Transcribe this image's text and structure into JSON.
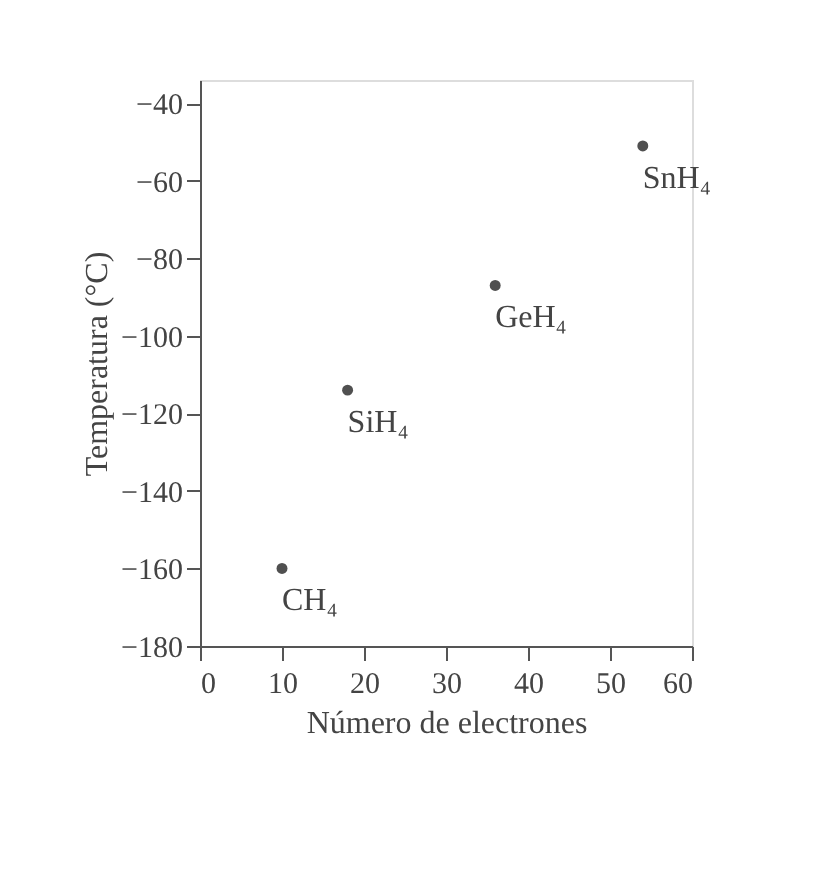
{
  "chart_data": {
    "type": "scatter",
    "xlabel": "Número de electrones",
    "ylabel": "Temperatura (°C)",
    "x": [
      10,
      18,
      36,
      54
    ],
    "series": [
      {
        "color": "#505050",
        "values": [
          -160,
          -114,
          -87,
          -51
        ]
      }
    ],
    "annotations": [
      {
        "text": "CH₄",
        "x": 10,
        "y": -160
      },
      {
        "text": "SiH₄",
        "x": 18,
        "y": -114
      },
      {
        "text": "GeH₄",
        "x": 36,
        "y": -87
      },
      {
        "text": "SnH₄",
        "x": 54,
        "y": -51
      }
    ],
    "xlim": [
      0,
      60
    ],
    "ylim": [
      -180,
      -34
    ],
    "xticks": [
      0,
      10,
      20,
      30,
      40,
      50,
      60
    ],
    "yticks": [
      -180,
      -160,
      -140,
      -120,
      -100,
      -80,
      -60,
      -40
    ],
    "grid": false,
    "marker": "circle"
  }
}
